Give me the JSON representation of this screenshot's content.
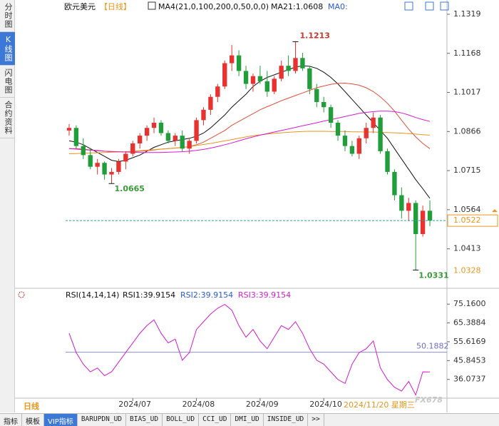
{
  "ui": {
    "side_tabs": [
      "分时图",
      "K线图",
      "闪电图",
      "合约资料"
    ],
    "bottom_tabs": [
      "指标",
      "模板",
      "VIP指标",
      "BARUPDN_UD",
      "BIAS_UD",
      "BOLL_UD",
      "CCI_UD",
      "DMI_UD",
      "INSIDE_UD",
      ">>"
    ],
    "period_label": "日线",
    "cursor_date": "2024/11/20 星期三",
    "watermark": "FX678"
  },
  "chart_data": [
    {
      "type": "candlestick",
      "title": "欧元美元",
      "period": "【日线】",
      "ma_header": "MA4(21,0,100,200,0,50,0,0)",
      "ma_value": "MA21:1.0608",
      "ma_zero": "MA0:",
      "categories": [
        null,
        null,
        null,
        null,
        null,
        null,
        null,
        null,
        null,
        null,
        null,
        null,
        null,
        null,
        null,
        null,
        null,
        null,
        null,
        null,
        null,
        null,
        null,
        null,
        null,
        null,
        null,
        null,
        null,
        null,
        null,
        null,
        null,
        null,
        null,
        null,
        null,
        null,
        null,
        null,
        null,
        null,
        null,
        null,
        null,
        null,
        null,
        null,
        null,
        null,
        null,
        null
      ],
      "open": [
        1.087,
        1.088,
        1.081,
        1.0775,
        1.073,
        1.0745,
        1.07,
        1.071,
        1.075,
        1.078,
        1.082,
        1.085,
        1.088,
        1.09,
        1.086,
        1.083,
        1.085,
        1.08,
        1.083,
        1.091,
        1.095,
        1.1,
        1.104,
        1.113,
        1.116,
        1.11,
        1.105,
        1.108,
        1.106,
        1.102,
        1.107,
        1.112,
        1.11,
        1.115,
        1.111,
        1.103,
        1.098,
        1.096,
        1.09,
        1.085,
        1.081,
        1.078,
        1.084,
        1.088,
        1.092,
        1.079,
        1.071,
        1.062,
        1.056,
        1.059,
        1.047,
        1.056
      ],
      "high": [
        1.0895,
        1.089,
        1.084,
        1.08,
        1.076,
        1.075,
        1.0725,
        1.076,
        1.079,
        1.083,
        1.086,
        1.089,
        1.092,
        1.091,
        1.087,
        1.086,
        1.087,
        1.084,
        1.092,
        1.096,
        1.101,
        1.105,
        1.114,
        1.12,
        1.118,
        1.112,
        1.109,
        1.112,
        1.11,
        1.108,
        1.114,
        1.116,
        1.1213,
        1.117,
        1.112,
        1.105,
        1.1,
        1.097,
        1.091,
        1.087,
        1.083,
        1.085,
        1.09,
        1.094,
        1.093,
        1.08,
        1.072,
        1.065,
        1.061,
        1.06,
        1.058,
        1.06
      ],
      "low": [
        1.085,
        1.08,
        1.076,
        1.072,
        1.07,
        1.068,
        1.0665,
        1.07,
        1.072,
        1.077,
        1.08,
        1.083,
        1.086,
        1.085,
        1.082,
        1.081,
        1.079,
        1.078,
        1.082,
        1.089,
        1.093,
        1.098,
        1.103,
        1.11,
        1.108,
        1.103,
        1.102,
        1.105,
        1.1,
        1.101,
        1.106,
        1.108,
        1.109,
        1.11,
        1.101,
        1.096,
        1.094,
        1.088,
        1.083,
        1.079,
        1.077,
        1.076,
        1.082,
        1.086,
        1.078,
        1.07,
        1.06,
        1.053,
        1.052,
        1.0331,
        1.046,
        1.05
      ],
      "close": [
        1.088,
        1.081,
        1.0775,
        1.073,
        1.0745,
        1.07,
        1.071,
        1.075,
        1.078,
        1.082,
        1.085,
        1.088,
        1.09,
        1.086,
        1.083,
        1.085,
        1.08,
        1.083,
        1.091,
        1.095,
        1.1,
        1.104,
        1.113,
        1.116,
        1.11,
        1.105,
        1.108,
        1.106,
        1.102,
        1.107,
        1.112,
        1.11,
        1.115,
        1.111,
        1.103,
        1.098,
        1.096,
        1.09,
        1.085,
        1.081,
        1.078,
        1.084,
        1.088,
        1.092,
        1.079,
        1.071,
        1.062,
        1.056,
        1.059,
        1.047,
        1.056,
        1.0522
      ],
      "up_color": "#e8322f",
      "down_color": "#1f9e3a",
      "series": [
        {
          "color": "#111111",
          "values": [
            1.083,
            1.0825,
            1.0815,
            1.08,
            1.0785,
            1.077,
            1.0755,
            1.075,
            1.0755,
            1.0765,
            1.0775,
            1.079,
            1.0805,
            1.0815,
            1.0825,
            1.083,
            1.0835,
            1.084,
            1.0848,
            1.086,
            1.088,
            1.0905,
            1.093,
            1.096,
            1.0985,
            1.101,
            1.104,
            1.106,
            1.1075,
            1.1085,
            1.1095,
            1.1105,
            1.1115,
            1.112,
            1.1118,
            1.111,
            1.1095,
            1.1075,
            1.105,
            1.102,
            1.099,
            1.096,
            1.093,
            1.09,
            1.087,
            1.084,
            1.08,
            1.076,
            1.072,
            1.068,
            1.0645,
            1.0608
          ]
        },
        {
          "color": "#e0503a",
          "values": [
            1.08,
            1.08,
            1.0798,
            1.0795,
            1.0793,
            1.079,
            1.0788,
            1.0787,
            1.0787,
            1.0788,
            1.079,
            1.0792,
            1.0795,
            1.0798,
            1.08,
            1.0802,
            1.0804,
            1.0808,
            1.0815,
            1.0825,
            1.084,
            1.0855,
            1.087,
            1.089,
            1.0905,
            1.092,
            1.0935,
            1.095,
            1.0962,
            1.0973,
            1.0985,
            1.0995,
            1.1005,
            1.1015,
            1.1025,
            1.1035,
            1.1042,
            1.1048,
            1.1052,
            1.1053,
            1.105,
            1.1045,
            1.1035,
            1.102,
            1.1,
            1.0975,
            1.0945,
            1.091,
            1.0875,
            1.0845,
            1.082,
            1.08
          ]
        },
        {
          "color": "#e8961e",
          "values": [
            1.078,
            1.0781,
            1.0782,
            1.0783,
            1.0784,
            1.0785,
            1.0786,
            1.0787,
            1.0788,
            1.079,
            1.0792,
            1.0794,
            1.0796,
            1.0798,
            1.08,
            1.0802,
            1.0805,
            1.0808,
            1.0812,
            1.0816,
            1.082,
            1.0825,
            1.083,
            1.0835,
            1.084,
            1.0845,
            1.085,
            1.0853,
            1.0856,
            1.0859,
            1.0861,
            1.0863,
            1.0865,
            1.0866,
            1.0867,
            1.0867,
            1.0867,
            1.0866,
            1.0866,
            1.0866,
            1.0865,
            1.0865,
            1.0864,
            1.0864,
            1.0863,
            1.0862,
            1.0861,
            1.086,
            1.0858,
            1.0856,
            1.0854,
            1.0852
          ]
        },
        {
          "color": "#d41ccf",
          "values": [
            1.08,
            1.0798,
            1.0796,
            1.0794,
            1.0792,
            1.079,
            1.0789,
            1.0788,
            1.0787,
            1.0786,
            1.0785,
            1.0785,
            1.0785,
            1.0785,
            1.0786,
            1.0787,
            1.0788,
            1.079,
            1.0793,
            1.0797,
            1.0802,
            1.0808,
            1.0815,
            1.0822,
            1.083,
            1.0838,
            1.0845,
            1.0852,
            1.0858,
            1.0864,
            1.087,
            1.0876,
            1.0882,
            1.0888,
            1.0894,
            1.09,
            1.0906,
            1.0912,
            1.0918,
            1.0924,
            1.093,
            1.0936,
            1.094,
            1.0943,
            1.0945,
            1.0945,
            1.0943,
            1.0938,
            1.093,
            1.092,
            1.0912,
            1.0905
          ]
        }
      ],
      "ylim": [
        1.0266,
        1.1352
      ],
      "yticks": [
        1.1319,
        1.1168,
        1.1017,
        1.0866,
        1.0715,
        1.0564,
        1.0413
      ],
      "xticks": [
        {
          "value": 9,
          "label": "2024/07"
        },
        {
          "value": 18,
          "label": "2024/08"
        },
        {
          "value": 27,
          "label": "2024/09"
        },
        {
          "value": 36,
          "label": "2024/10"
        }
      ],
      "last_price": 1.0522,
      "marker_price": 1.0328,
      "high_label": {
        "index": 32,
        "value": 1.1213
      },
      "low_labels": [
        {
          "index": 6,
          "value": 1.0665
        },
        {
          "index": 49,
          "value": 1.0331
        }
      ]
    },
    {
      "type": "line",
      "title": "RSI(14,14,14)",
      "legend": [
        {
          "text": "RSI1:39.9154",
          "color": "#111111"
        },
        {
          "text": "RSI2:39.9154",
          "color": "#2a5bd7"
        },
        {
          "text": "RSI3:39.9154",
          "color": "#d41ccf"
        }
      ],
      "series": [
        {
          "color": "#d41ccf",
          "values": [
            60,
            50,
            44,
            40,
            42,
            38,
            40,
            45,
            50,
            55,
            60,
            64,
            67,
            60,
            55,
            57,
            46,
            50,
            62,
            66,
            70,
            73,
            75,
            72,
            64,
            58,
            62,
            56,
            52,
            58,
            64,
            62,
            66,
            60,
            52,
            46,
            44,
            40,
            36,
            34,
            44,
            50,
            52,
            56,
            42,
            36,
            32,
            30,
            35,
            28,
            40,
            39.9154
          ]
        }
      ],
      "ylim": [
        25.6,
        81.15
      ],
      "yticks": [
        {
          "value": 75.16,
          "label": "75.1600"
        },
        65.3884,
        55.6169,
        45.8453,
        36.0737
      ],
      "ref_line": 50.1882
    }
  ]
}
